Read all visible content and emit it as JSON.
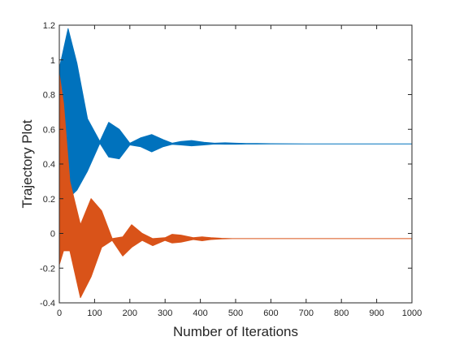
{
  "chart_data": {
    "type": "area",
    "title": "",
    "xlabel": "Number of Iterations",
    "ylabel": "Trajectory Plot",
    "xlim": [
      0,
      1000
    ],
    "ylim": [
      -0.4,
      1.2
    ],
    "xticks": [
      0,
      100,
      200,
      300,
      400,
      500,
      600,
      700,
      800,
      900,
      1000
    ],
    "yticks": [
      -0.4,
      -0.2,
      0,
      0.2,
      0.4,
      0.6,
      0.8,
      1,
      1.2
    ],
    "ytick_labels": [
      "-0.4",
      "-0.2",
      "0",
      "0.2",
      "0.4",
      "0.6",
      "0.8",
      "1",
      "1.2"
    ],
    "grid": false,
    "legend": "none",
    "series": [
      {
        "color": "#0072BD",
        "x": [
          0,
          25,
          50,
          80,
          115,
          140,
          170,
          200,
          230,
          262,
          295,
          320,
          345,
          375,
          410,
          440,
          470,
          500,
          530,
          560,
          600,
          700,
          800,
          900,
          1000
        ],
        "upper": [
          0.95,
          1.18,
          0.98,
          0.66,
          0.53,
          0.64,
          0.6,
          0.52,
          0.55,
          0.57,
          0.54,
          0.52,
          0.53,
          0.535,
          0.525,
          0.52,
          0.522,
          0.52,
          0.518,
          0.518,
          0.517,
          0.516,
          0.516,
          0.516,
          0.516
        ],
        "lower": [
          0.25,
          0.2,
          0.25,
          0.36,
          0.52,
          0.44,
          0.43,
          0.51,
          0.5,
          0.47,
          0.5,
          0.513,
          0.51,
          0.505,
          0.51,
          0.515,
          0.514,
          0.514,
          0.515,
          0.515,
          0.516,
          0.516,
          0.516,
          0.516,
          0.516
        ]
      },
      {
        "color": "#D95319",
        "x": [
          0,
          12,
          30,
          60,
          90,
          120,
          150,
          180,
          205,
          235,
          265,
          300,
          320,
          345,
          380,
          405,
          430,
          460,
          490,
          530,
          560,
          600,
          700,
          800,
          900,
          1000
        ],
        "upper": [
          0.92,
          0.75,
          0.3,
          0.05,
          0.2,
          0.13,
          -0.03,
          -0.02,
          0.05,
          0.0,
          -0.03,
          -0.025,
          -0.005,
          -0.01,
          -0.025,
          -0.02,
          -0.025,
          -0.028,
          -0.03,
          -0.03,
          -0.03,
          -0.03,
          -0.03,
          -0.03,
          -0.03,
          -0.03
        ],
        "lower": [
          -0.18,
          -0.1,
          -0.1,
          -0.37,
          -0.25,
          -0.08,
          -0.04,
          -0.13,
          -0.08,
          -0.04,
          -0.07,
          -0.04,
          -0.055,
          -0.05,
          -0.035,
          -0.042,
          -0.035,
          -0.032,
          -0.03,
          -0.03,
          -0.03,
          -0.03,
          -0.03,
          -0.03,
          -0.03,
          -0.03
        ]
      }
    ]
  }
}
